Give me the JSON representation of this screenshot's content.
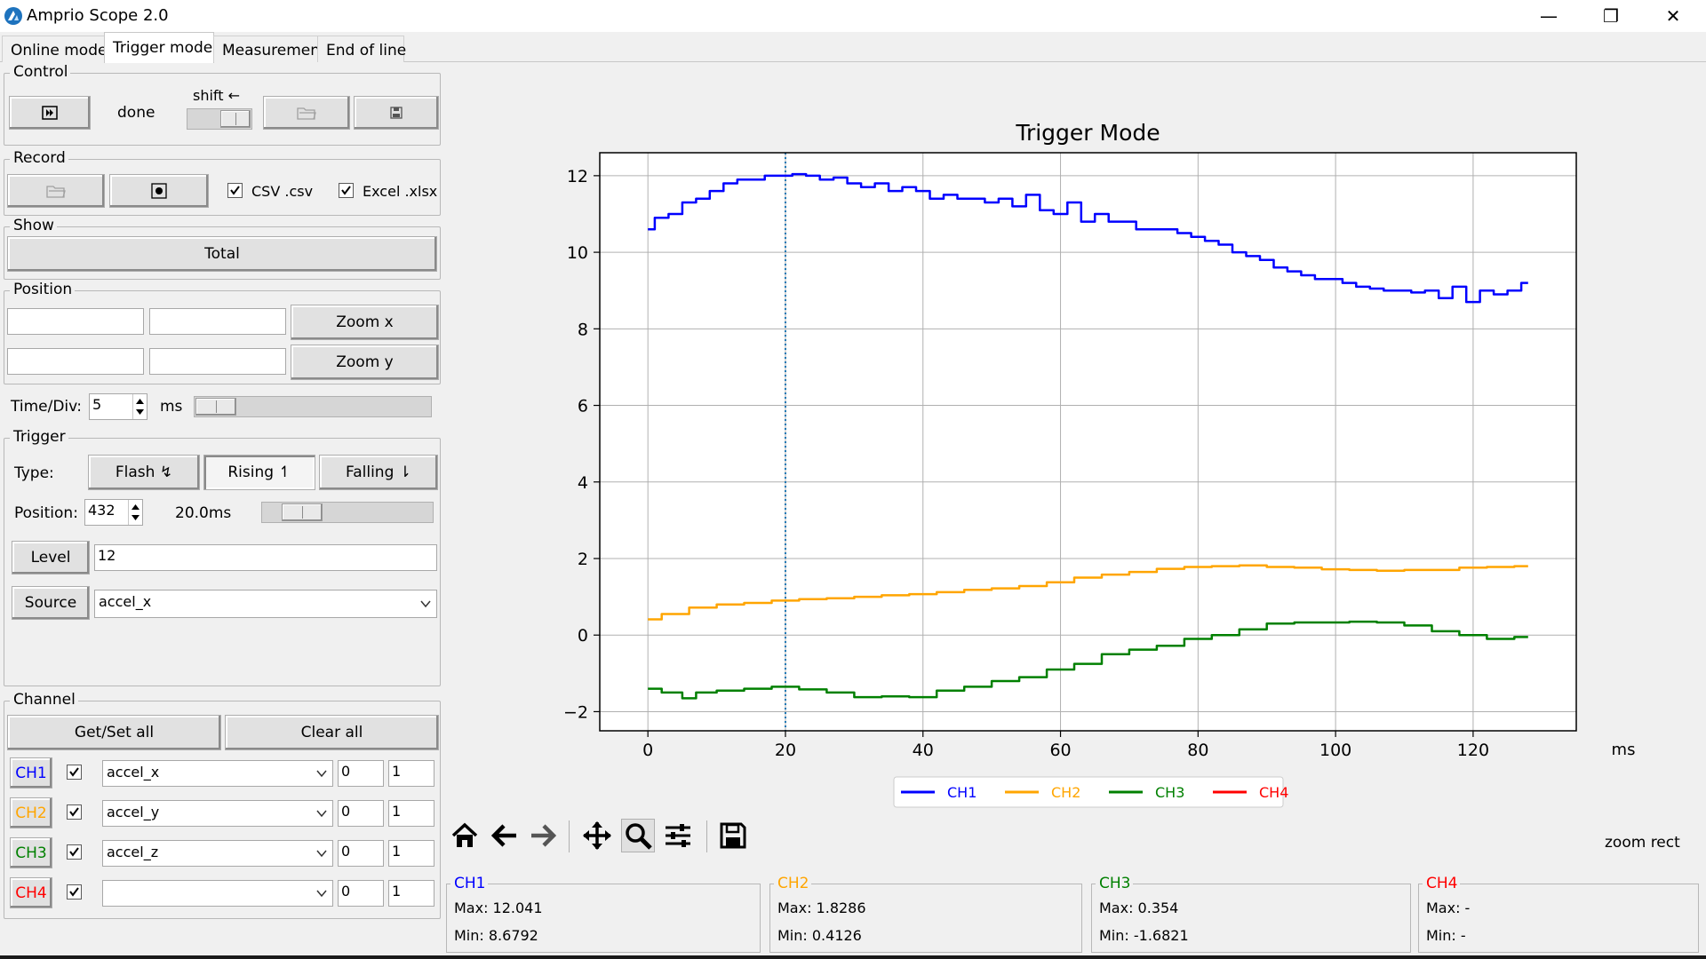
{
  "window": {
    "title": "Amprio Scope 2.0",
    "minimize": "—",
    "restore": "❐",
    "close": "✕"
  },
  "tabs": [
    {
      "label": "Online mode",
      "active": false
    },
    {
      "label": "Trigger mode",
      "active": true
    },
    {
      "label": "Measurement",
      "active": false
    },
    {
      "label": "End of line",
      "active": false
    }
  ],
  "control": {
    "group_label": "Control",
    "status": "done",
    "shift_label": "shift ←"
  },
  "record": {
    "group_label": "Record",
    "csv_label": "CSV .csv",
    "csv_checked": true,
    "excel_label": "Excel .xlsx",
    "excel_checked": true
  },
  "show": {
    "group_label": "Show",
    "total_label": "Total"
  },
  "position": {
    "group_label": "Position",
    "x_min": "",
    "x_max": "",
    "y_min": "",
    "y_max": "",
    "zoom_x_label": "Zoom x",
    "zoom_y_label": "Zoom y"
  },
  "time_div": {
    "label": "Time/Div:",
    "value": "5",
    "unit": "ms"
  },
  "trigger": {
    "group_label": "Trigger",
    "type_label": "Type:",
    "flash_label": "Flash ↯",
    "rising_label": "Rising ↿",
    "falling_label": "Falling ⇂",
    "position_label": "Position:",
    "position_value": "432",
    "position_time": "20.0ms",
    "level_label": "Level",
    "level_value": "12",
    "source_label": "Source",
    "source_value": "accel_x"
  },
  "channel": {
    "group_label": "Channel",
    "getset_label": "Get/Set all",
    "clear_label": "Clear all",
    "rows": [
      {
        "name": "CH1",
        "color": "#0000ff",
        "checked": true,
        "signal": "accel_x",
        "offset": "0",
        "scale": "1"
      },
      {
        "name": "CH2",
        "color": "#ffa500",
        "checked": true,
        "signal": "accel_y",
        "offset": "0",
        "scale": "1"
      },
      {
        "name": "CH3",
        "color": "#008000",
        "checked": true,
        "signal": "accel_z",
        "offset": "0",
        "scale": "1"
      },
      {
        "name": "CH4",
        "color": "#ff0000",
        "checked": true,
        "signal": "",
        "offset": "0",
        "scale": "1"
      }
    ]
  },
  "toolbar": {
    "icons": [
      "home-icon",
      "back-arrow-icon",
      "forward-arrow-icon",
      "pan-icon",
      "zoom-icon",
      "settings-sliders-icon",
      "save-icon"
    ],
    "mode_text": "zoom rect"
  },
  "stats": [
    {
      "name": "CH1",
      "color": "#0000ff",
      "max": "Max: 12.041",
      "min": "Min: 8.6792"
    },
    {
      "name": "CH2",
      "color": "#ffa500",
      "max": "Max: 1.8286",
      "min": "Min: 0.4126"
    },
    {
      "name": "CH3",
      "color": "#008000",
      "max": "Max: 0.354",
      "min": "Min: -1.6821"
    },
    {
      "name": "CH4",
      "color": "#ff0000",
      "max": "Max: -",
      "min": "Min: -"
    }
  ],
  "chart_data": {
    "type": "line",
    "title": "Trigger Mode",
    "xlabel": "ms",
    "ylabel": "",
    "xlim": [
      -7,
      135
    ],
    "ylim": [
      -2.5,
      12.6
    ],
    "xticks": [
      0,
      20,
      40,
      60,
      80,
      100,
      120
    ],
    "yticks": [
      -2,
      0,
      2,
      4,
      6,
      8,
      10,
      12
    ],
    "ytick_labels": [
      "−2",
      "0",
      "2",
      "4",
      "6",
      "8",
      "10",
      "12"
    ],
    "grid": true,
    "legend_position": "below",
    "trigger_marker_x": 20,
    "series": [
      {
        "name": "CH1",
        "color": "#0000ff",
        "x": [
          0,
          2,
          4,
          6,
          8,
          10,
          12,
          14,
          16,
          18,
          20,
          22,
          24,
          26,
          28,
          30,
          32,
          34,
          36,
          38,
          40,
          42,
          44,
          46,
          48,
          50,
          52,
          54,
          56,
          58,
          60,
          62,
          64,
          66,
          68,
          70,
          72,
          74,
          76,
          78,
          80,
          82,
          84,
          86,
          88,
          90,
          92,
          94,
          96,
          98,
          100,
          102,
          104,
          106,
          108,
          110,
          112,
          114,
          116,
          118,
          120,
          122,
          124,
          126,
          128
        ],
        "values": [
          10.6,
          10.9,
          11.0,
          11.3,
          11.4,
          11.6,
          11.8,
          11.9,
          11.9,
          12.0,
          12.0,
          12.04,
          12.0,
          11.9,
          11.95,
          11.8,
          11.7,
          11.8,
          11.6,
          11.7,
          11.6,
          11.4,
          11.5,
          11.4,
          11.4,
          11.3,
          11.4,
          11.2,
          11.5,
          11.1,
          11.0,
          11.3,
          10.8,
          11.0,
          10.8,
          10.8,
          10.6,
          10.6,
          10.6,
          10.5,
          10.4,
          10.3,
          10.2,
          10.0,
          9.9,
          9.8,
          9.6,
          9.5,
          9.4,
          9.3,
          9.3,
          9.2,
          9.1,
          9.05,
          9.0,
          9.0,
          8.95,
          9.0,
          8.8,
          9.1,
          8.7,
          9.0,
          8.9,
          9.0,
          9.2
        ]
      },
      {
        "name": "CH2",
        "color": "#ffa500",
        "x": [
          0,
          4,
          8,
          12,
          16,
          20,
          24,
          28,
          32,
          36,
          40,
          44,
          48,
          52,
          56,
          60,
          64,
          68,
          72,
          76,
          80,
          84,
          88,
          92,
          96,
          100,
          104,
          108,
          112,
          116,
          120,
          124,
          128
        ],
        "values": [
          0.41,
          0.55,
          0.72,
          0.8,
          0.84,
          0.9,
          0.94,
          0.96,
          1.0,
          1.04,
          1.07,
          1.12,
          1.18,
          1.22,
          1.28,
          1.38,
          1.5,
          1.58,
          1.65,
          1.73,
          1.78,
          1.8,
          1.82,
          1.78,
          1.76,
          1.72,
          1.7,
          1.68,
          1.7,
          1.7,
          1.76,
          1.78,
          1.8
        ]
      },
      {
        "name": "CH3",
        "color": "#008000",
        "x": [
          0,
          4,
          6,
          8,
          12,
          16,
          20,
          24,
          28,
          32,
          36,
          40,
          44,
          48,
          52,
          56,
          60,
          64,
          68,
          72,
          76,
          80,
          84,
          88,
          92,
          96,
          100,
          104,
          108,
          112,
          116,
          120,
          124,
          128
        ],
        "values": [
          -1.4,
          -1.5,
          -1.65,
          -1.5,
          -1.45,
          -1.4,
          -1.35,
          -1.42,
          -1.5,
          -1.62,
          -1.6,
          -1.62,
          -1.45,
          -1.35,
          -1.2,
          -1.1,
          -0.9,
          -0.75,
          -0.5,
          -0.38,
          -0.28,
          -0.1,
          0.0,
          0.15,
          0.3,
          0.33,
          0.33,
          0.35,
          0.33,
          0.25,
          0.1,
          0.0,
          -0.1,
          -0.05
        ]
      },
      {
        "name": "CH4",
        "color": "#ff0000",
        "x": [],
        "values": []
      }
    ]
  }
}
